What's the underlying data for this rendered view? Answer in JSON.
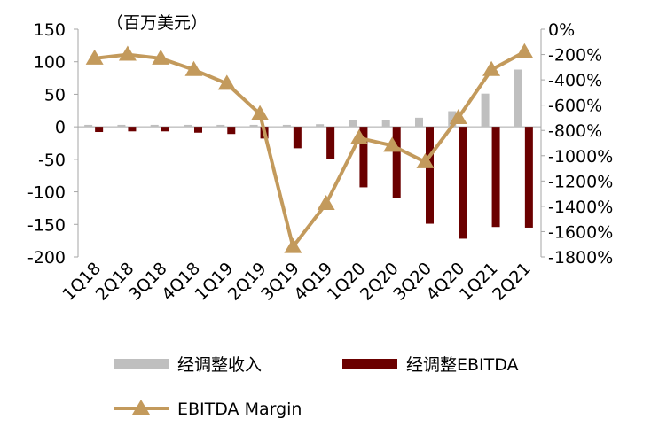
{
  "chart_data": {
    "type": "bar",
    "title": "",
    "unit_label": "（百万美元）",
    "categories": [
      "1Q18",
      "2Q18",
      "3Q18",
      "4Q18",
      "1Q19",
      "2Q19",
      "3Q19",
      "4Q19",
      "1Q20",
      "2Q20",
      "3Q20",
      "4Q20",
      "1Q21",
      "2Q21"
    ],
    "series": [
      {
        "name": "经调整收入",
        "type": "bar",
        "axis": "left",
        "color": "#bfbfbf",
        "values": [
          3,
          3,
          3,
          3,
          3,
          3,
          3,
          4,
          10,
          11,
          14,
          24,
          51,
          88
        ]
      },
      {
        "name": "经调整EBITDA",
        "type": "bar",
        "axis": "left",
        "color": "#6b0000",
        "values": [
          -8,
          -7,
          -7,
          -9,
          -11,
          -18,
          -33,
          -50,
          -93,
          -109,
          -149,
          -172,
          -154,
          -155
        ]
      },
      {
        "name": "EBITDA Margin",
        "type": "line",
        "axis": "right",
        "color": "#c39a5c",
        "marker": "triangle",
        "values": [
          -230,
          -200,
          -230,
          -320,
          -430,
          -670,
          -1720,
          -1380,
          -860,
          -920,
          -1050,
          -700,
          -320,
          -180
        ]
      }
    ],
    "y_left": {
      "min": -200,
      "max": 150,
      "ticks": [
        150,
        100,
        50,
        0,
        -50,
        -100,
        -150,
        -200
      ],
      "tick_labels": [
        "150",
        "100",
        "50",
        "0",
        "-50",
        "-100",
        "-150",
        "-200"
      ]
    },
    "y_right": {
      "min": -1800,
      "max": 0,
      "ticks": [
        0,
        -200,
        -400,
        -600,
        -800,
        -1000,
        -1200,
        -1400,
        -1600,
        -1800
      ],
      "tick_labels": [
        "0%",
        "-200%",
        "-400%",
        "-600%",
        "-800%",
        "-1000%",
        "-1200%",
        "-1400%",
        "-1600%",
        "-1800%"
      ]
    },
    "legend_position": "bottom"
  }
}
